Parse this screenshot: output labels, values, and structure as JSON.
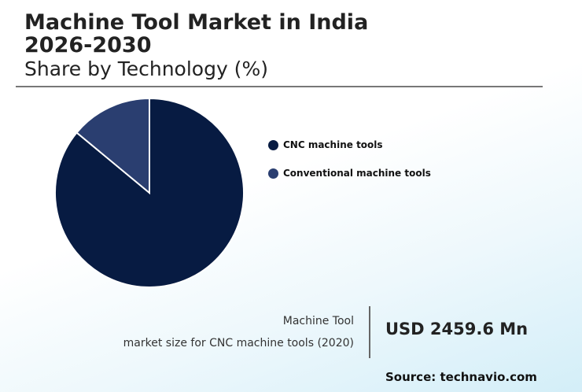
{
  "header": {
    "title": "Machine Tool Market in India 2026-2030",
    "subtitle": "Share by Technology (%)"
  },
  "chart_data": {
    "type": "pie",
    "title": "Share by Technology (%)",
    "categories": [
      "CNC machine tools",
      "Conventional machine tools"
    ],
    "values": [
      86,
      14
    ],
    "colors": [
      "#071b42",
      "#2a3e70"
    ],
    "legend_position": "right"
  },
  "stat": {
    "label_line1": "Machine Tool",
    "label_line2": "market size for CNC machine tools (2020)",
    "value": "USD 2459.6 Mn"
  },
  "source": "Source: technavio.com"
}
